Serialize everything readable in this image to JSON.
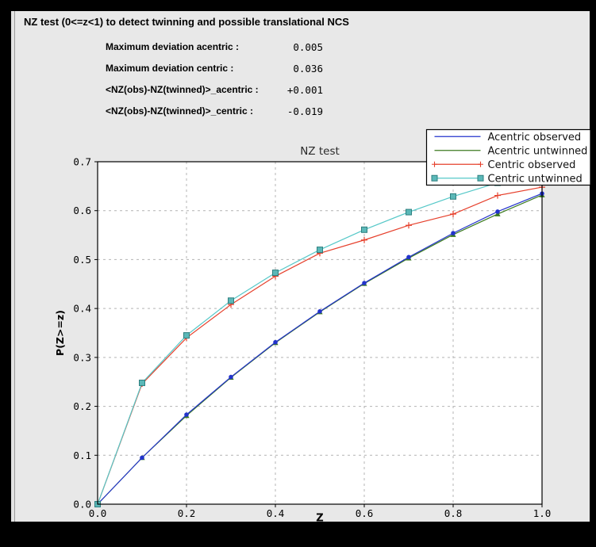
{
  "header": {
    "title": "NZ test (0<=z<1) to detect twinning and possible translational NCS"
  },
  "stats": {
    "rows": [
      {
        "label": "Maximum deviation acentric :",
        "value": "0.005"
      },
      {
        "label": "Maximum deviation centric :",
        "value": "0.036"
      },
      {
        "label": "<NZ(obs)-NZ(twinned)>_acentric :",
        "value": "+0.001"
      },
      {
        "label": "<NZ(obs)-NZ(twinned)>_centric :",
        "value": "-0.019"
      }
    ]
  },
  "chart_data": {
    "type": "line",
    "title": "NZ test",
    "xlabel": "Z",
    "ylabel": "P(Z>=z)",
    "xlim": [
      0.0,
      1.0
    ],
    "ylim": [
      0.0,
      0.7
    ],
    "xticks": [
      0.0,
      0.2,
      0.4,
      0.6,
      0.8,
      1.0
    ],
    "yticks": [
      0.0,
      0.1,
      0.2,
      0.3,
      0.4,
      0.5,
      0.6,
      0.7
    ],
    "grid": "dashed",
    "legend_position": "top-right",
    "x": [
      0.0,
      0.1,
      0.2,
      0.3,
      0.4,
      0.5,
      0.6,
      0.7,
      0.8,
      0.9,
      1.0
    ],
    "series": [
      {
        "name": "Acentric observed",
        "color": "#2333cc",
        "marker": "dot",
        "values": [
          0.0,
          0.095,
          0.183,
          0.26,
          0.331,
          0.394,
          0.452,
          0.505,
          0.554,
          0.598,
          0.635
        ]
      },
      {
        "name": "Acentric untwinned",
        "color": "#3b7a1f",
        "marker": "triangle",
        "values": [
          0.0,
          0.095,
          0.181,
          0.259,
          0.33,
          0.393,
          0.451,
          0.503,
          0.551,
          0.593,
          0.632
        ]
      },
      {
        "name": "Centric observed",
        "color": "#e6402c",
        "marker": "plus",
        "values": [
          0.0,
          0.246,
          0.34,
          0.408,
          0.466,
          0.513,
          0.54,
          0.57,
          0.593,
          0.631,
          0.648
        ]
      },
      {
        "name": "Centric untwinned",
        "color": "#55c8c8",
        "marker": "square",
        "marker_fill": "#5bb8b8",
        "marker_edge": "#2e7f7f",
        "values": [
          0.0,
          0.248,
          0.345,
          0.416,
          0.473,
          0.52,
          0.561,
          0.597,
          0.629,
          0.657,
          0.683
        ]
      }
    ],
    "colors": {
      "plot_background": "#ffffff",
      "panel_background": "#e8e8e8",
      "grid": "#b4b4b4",
      "axis": "#000000",
      "title_text": "#2a2a2a"
    }
  }
}
